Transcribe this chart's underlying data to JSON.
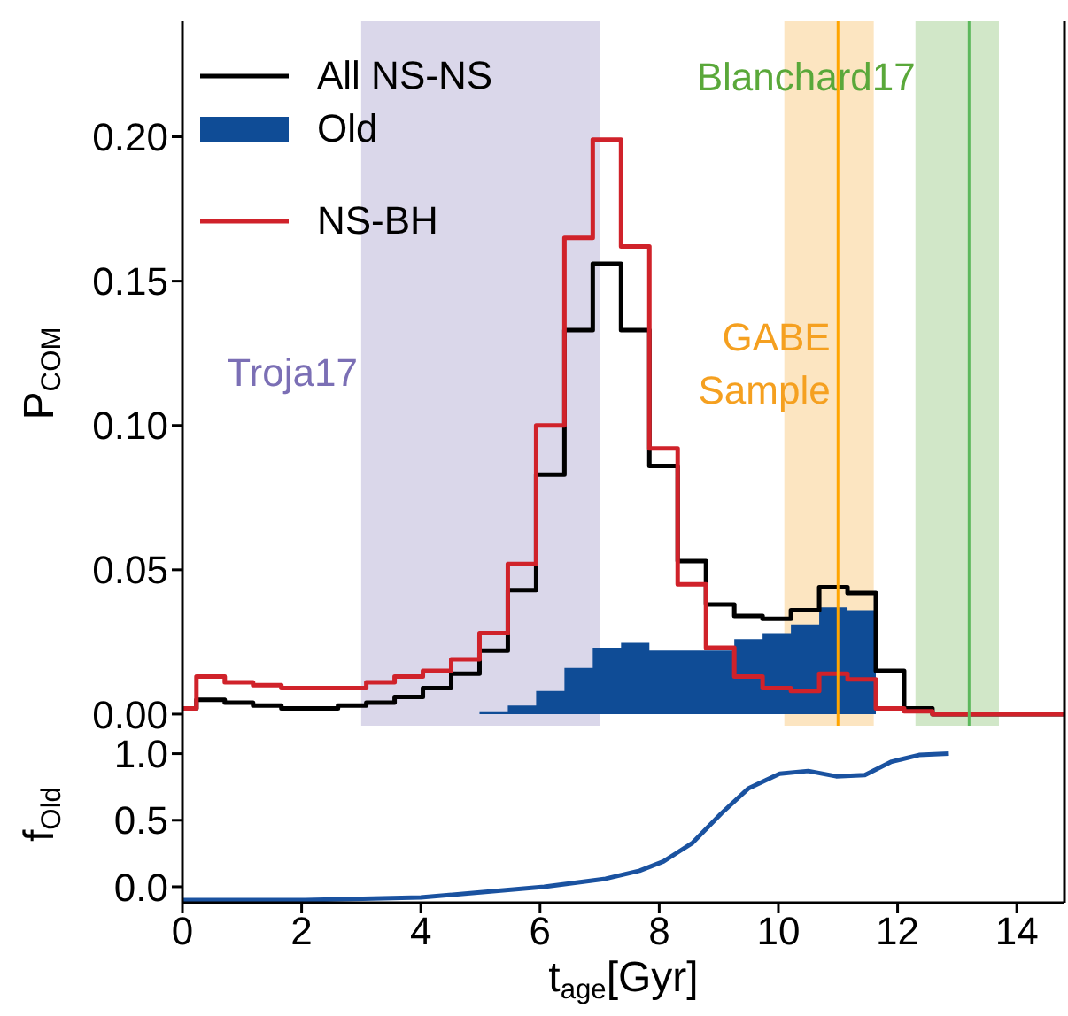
{
  "chart_data": [
    {
      "type": "histogram",
      "ylabel": "P$_{COM}$",
      "legend": "top left",
      "tick_labels": "y",
      "bins": [
        0,
        0.235,
        0.71,
        1.185,
        1.66,
        2.135,
        2.61,
        3.085,
        3.56,
        4.035,
        4.51,
        4.985,
        5.46,
        5.935,
        6.41,
        6.885,
        7.36,
        7.835,
        8.31,
        8.785,
        9.26,
        9.735,
        10.21,
        10.685,
        11.16,
        11.635,
        12.11,
        12.585,
        13.06,
        13.535,
        14.01,
        14.485
      ],
      "series": [
        {
          "name": "All NS-NS",
          "type": "step",
          "color": "#000000",
          "x": [
            0,
            0.235,
            0.71,
            1.185,
            1.66,
            2.135,
            2.61,
            3.085,
            3.56,
            4.035,
            4.51,
            4.985,
            5.46,
            5.935,
            6.41,
            6.885,
            7.36,
            7.835,
            8.31,
            8.785,
            9.26,
            9.735,
            10.21,
            10.685,
            11.16,
            11.635,
            12.11,
            12.585,
            13.06,
            13.535,
            14.01,
            14.8
          ],
          "values": [
            0.002,
            0.005,
            0.004,
            0.003,
            0.002,
            0.002,
            0.003,
            0.004,
            0.006,
            0.009,
            0.014,
            0.022,
            0.043,
            0.083,
            0.133,
            0.156,
            0.133,
            0.086,
            0.053,
            0.038,
            0.034,
            0.033,
            0.036,
            0.044,
            0.042,
            0.015,
            0.002,
            0,
            0,
            0,
            0,
            0
          ]
        },
        {
          "name": "Old",
          "color": "#0f4c96",
          "values": [
            0,
            0,
            0,
            0,
            0,
            0,
            0,
            0,
            0,
            0,
            0,
            0.001,
            0.003,
            0.008,
            0.016,
            0.023,
            0.025,
            0.022,
            0.022,
            0.022,
            0.026,
            0.028,
            0.031,
            0.037,
            0.036,
            0,
            0,
            0,
            0,
            0,
            0
          ]
        },
        {
          "name": "NS-BH",
          "type": "step",
          "color": "#d0222a",
          "x": [
            0,
            0.235,
            0.71,
            1.185,
            1.66,
            2.135,
            2.61,
            3.085,
            3.56,
            4.035,
            4.51,
            4.985,
            5.46,
            5.935,
            6.41,
            6.885,
            7.36,
            7.835,
            8.31,
            8.785,
            9.26,
            9.735,
            10.21,
            10.685,
            11.16,
            11.635,
            12.11,
            12.585,
            13.06,
            13.535,
            14.01,
            14.8
          ],
          "values": [
            0.002,
            0.013,
            0.011,
            0.01,
            0.009,
            0.009,
            0.009,
            0.011,
            0.013,
            0.015,
            0.019,
            0.028,
            0.052,
            0.1,
            0.165,
            0.199,
            0.162,
            0.092,
            0.045,
            0.023,
            0.013,
            0.009,
            0.008,
            0.014,
            0.012,
            0.002,
            0.001,
            0,
            0,
            0,
            0,
            0
          ]
        }
      ],
      "xlim": [
        0,
        14.8
      ],
      "xticks": [
        0,
        2,
        4,
        6,
        8,
        10,
        12,
        14
      ],
      "ylim": [
        -0.004,
        0.24
      ],
      "yticks": [
        {
          "value": 0,
          "label": "0.00"
        },
        {
          "value": 0.05,
          "label": "0.05"
        },
        {
          "value": 0.1,
          "label": "0.10"
        },
        {
          "value": 0.15,
          "label": "0.15"
        },
        {
          "value": 0.2,
          "label": "0.20"
        }
      ],
      "bands": [
        {
          "axis": "x",
          "from": 3.0,
          "to": 7.0,
          "label": "Troja17",
          "color": "#7b6fb5"
        },
        {
          "axis": "x",
          "from": 10.1,
          "to": 11.6,
          "label": "GABE Sample",
          "color": "#f5a020"
        },
        {
          "axis": "x",
          "from": 12.3,
          "to": 13.7,
          "label": "Blanchard17",
          "color": "#5aa83a"
        }
      ],
      "ref_lines": [
        {
          "axis": "x",
          "value": 11.0,
          "color": "#ffa500"
        },
        {
          "axis": "x",
          "value": 13.2,
          "color": "#5cb85c"
        }
      ]
    },
    {
      "type": "line",
      "xlabel": "t$_{age}$[Gyr]",
      "ylabel": "f$_{Old}$",
      "x": [
        0,
        2.06,
        4.0,
        5.04,
        6.07,
        7.1,
        7.67,
        8.07,
        8.56,
        9.04,
        9.5,
        10.02,
        10.5,
        10.97,
        11.45,
        11.9,
        12.36,
        12.86
      ],
      "values": [
        -0.1,
        -0.1,
        -0.08,
        -0.04,
        0.0,
        0.06,
        0.12,
        0.19,
        0.33,
        0.55,
        0.74,
        0.85,
        0.87,
        0.83,
        0.84,
        0.94,
        0.99,
        1.0
      ],
      "color": "#1a52a0",
      "xlim": [
        0,
        14.8
      ],
      "xticks": [
        0,
        2,
        4,
        6,
        8,
        10,
        12,
        14
      ],
      "ylim": [
        -0.12,
        1.21
      ],
      "yticks": [
        {
          "value": 0,
          "label": "0.0"
        },
        {
          "value": 0.5,
          "label": "0.5"
        },
        {
          "value": 1,
          "label": "1.0"
        }
      ]
    }
  ]
}
